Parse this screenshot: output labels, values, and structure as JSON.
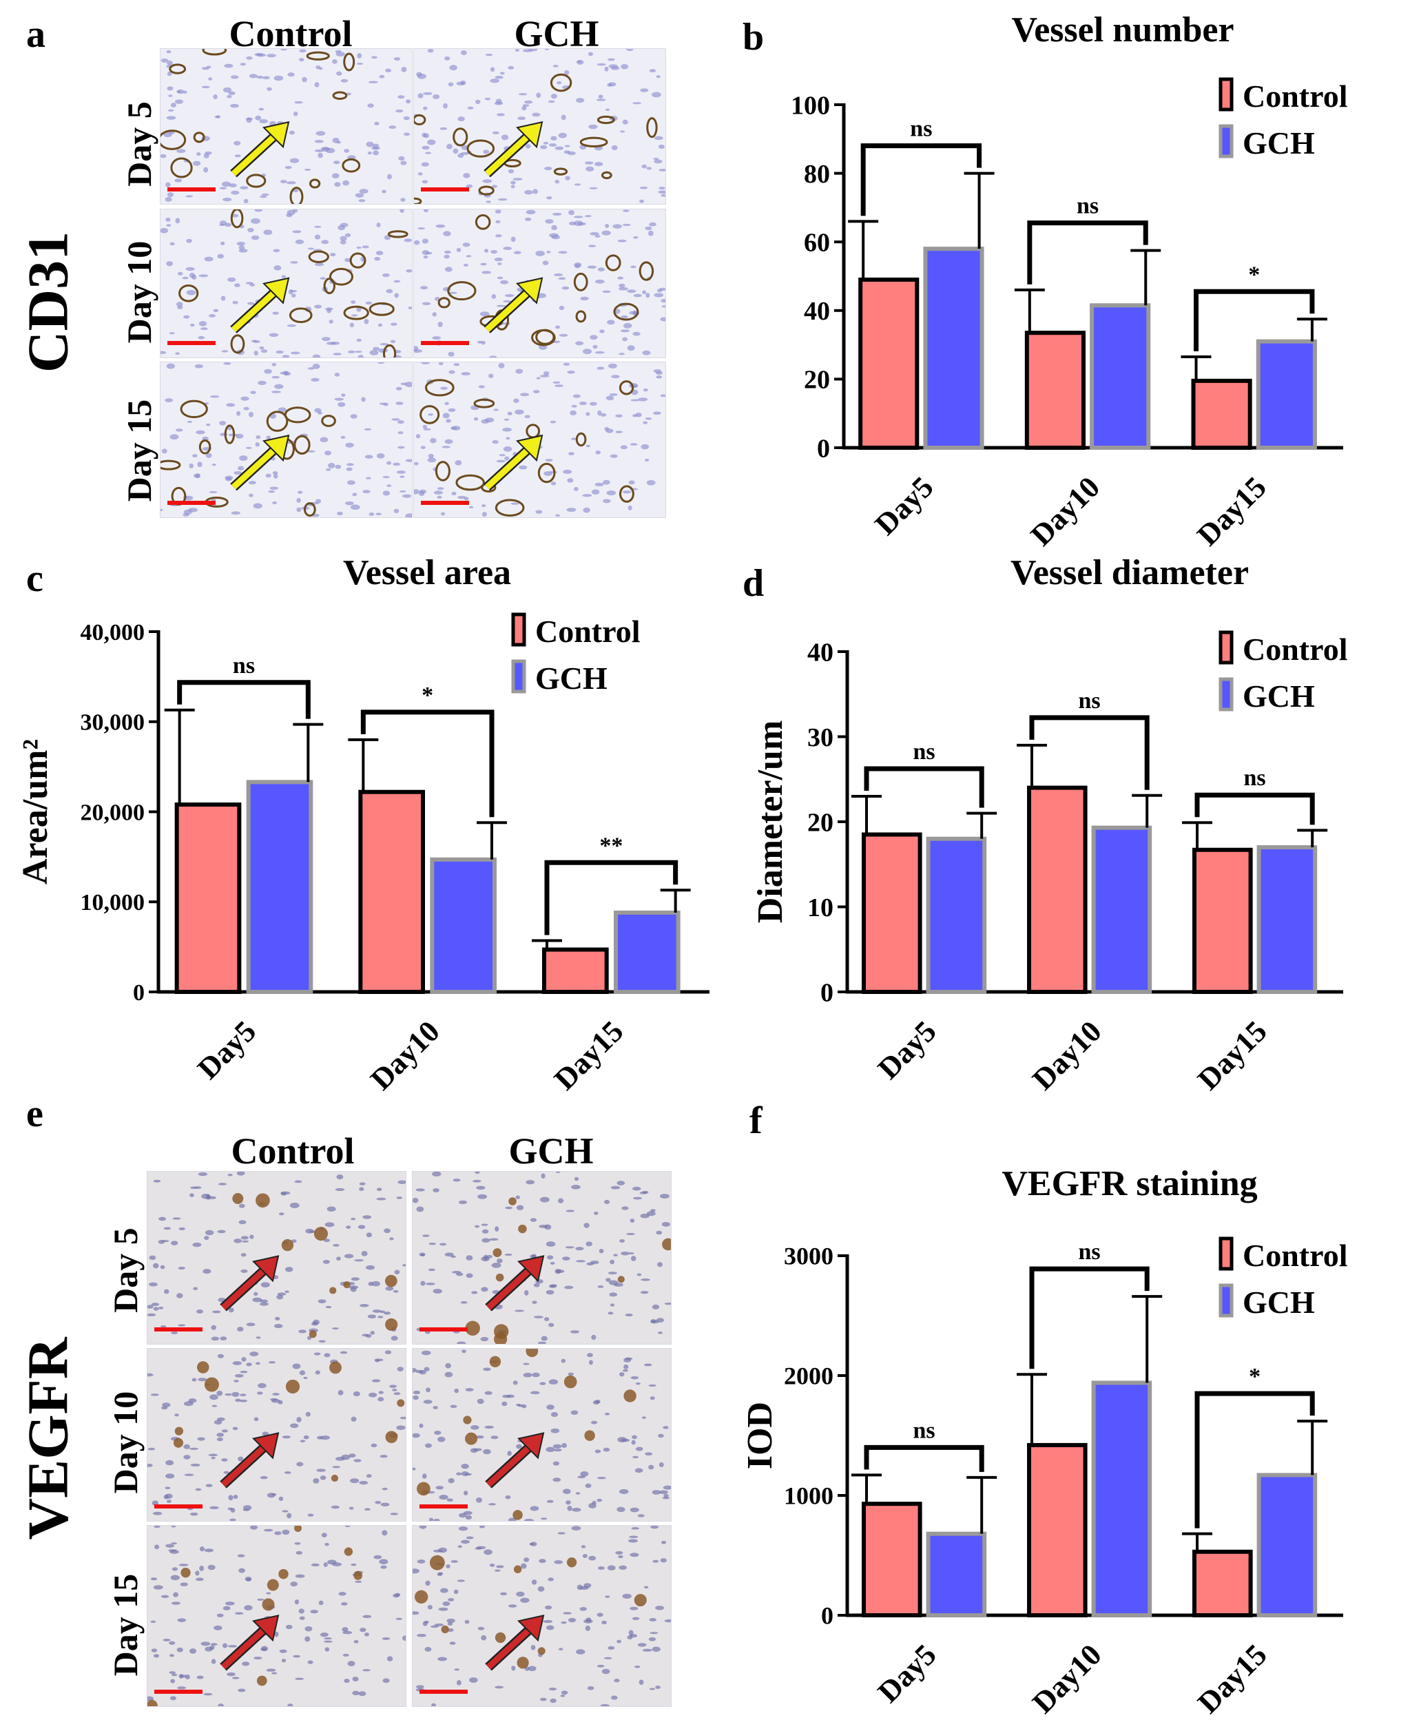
{
  "panels": {
    "a": {
      "letter": "a",
      "stain": "CD31",
      "columns": [
        "Control",
        "GCH"
      ],
      "rows": [
        "Day 5",
        "Day 10",
        "Day 15"
      ]
    },
    "e": {
      "letter": "e",
      "stain": "VEGFR",
      "columns": [
        "Control",
        "GCH"
      ],
      "rows": [
        "Day 5",
        "Day 10",
        "Day 15"
      ]
    }
  },
  "colors": {
    "control": "#FF7F7F",
    "gch": "#5757FF",
    "gch_outline": "#999999",
    "scale_bar": "#ee1111",
    "cd31_arrow": "#f2ee1a",
    "vegfr_arrow": "#cc2a2a"
  },
  "chart_data": [
    {
      "id": "b",
      "letter": "b",
      "type": "bar",
      "title": "Vessel number",
      "xlabel": "",
      "ylabel": "",
      "categories": [
        "Day5",
        "Day10",
        "Day15"
      ],
      "series": [
        {
          "name": "Control",
          "values": [
            49,
            33.5,
            19.5
          ],
          "errors": [
            17,
            12.5,
            7
          ]
        },
        {
          "name": "GCH",
          "values": [
            58,
            41.5,
            31
          ],
          "errors": [
            22,
            16,
            6.5
          ]
        }
      ],
      "yticks": [
        "0",
        "20",
        "40",
        "60",
        "80",
        "100"
      ],
      "ylim": [
        0,
        100
      ],
      "significance": [
        "ns",
        "ns",
        "*"
      ]
    },
    {
      "id": "c",
      "letter": "c",
      "type": "bar",
      "title": "Vessel area",
      "xlabel": "",
      "ylabel": "Area/um²",
      "categories": [
        "Day5",
        "Day10",
        "Day15"
      ],
      "series": [
        {
          "name": "Control",
          "values": [
            20800,
            22200,
            4700
          ],
          "errors": [
            10500,
            5800,
            1000
          ]
        },
        {
          "name": "GCH",
          "values": [
            23300,
            14700,
            8800
          ],
          "errors": [
            6400,
            4100,
            2500
          ]
        }
      ],
      "yticks": [
        "0",
        "10,000",
        "20,000",
        "30,000",
        "40,000"
      ],
      "ylim": [
        0,
        40000
      ],
      "significance": [
        "ns",
        "*",
        "**"
      ]
    },
    {
      "id": "d",
      "letter": "d",
      "type": "bar",
      "title": "Vessel diameter",
      "xlabel": "",
      "ylabel": "Diameter/um",
      "categories": [
        "Day5",
        "Day10",
        "Day15"
      ],
      "series": [
        {
          "name": "Control",
          "values": [
            18.5,
            24,
            16.7
          ],
          "errors": [
            4.5,
            5,
            3.2
          ]
        },
        {
          "name": "GCH",
          "values": [
            18,
            19.3,
            17
          ],
          "errors": [
            3,
            3.8,
            2
          ]
        }
      ],
      "yticks": [
        "0",
        "10",
        "20",
        "30",
        "40"
      ],
      "ylim": [
        0,
        40
      ],
      "significance": [
        "ns",
        "ns",
        "ns"
      ]
    },
    {
      "id": "f",
      "letter": "f",
      "type": "bar",
      "title": "VEGFR staining",
      "xlabel": "",
      "ylabel": "IOD",
      "categories": [
        "Day5",
        "Day10",
        "Day15"
      ],
      "series": [
        {
          "name": "Control",
          "values": [
            930,
            1420,
            530
          ],
          "errors": [
            240,
            590,
            150
          ]
        },
        {
          "name": "GCH",
          "values": [
            680,
            1940,
            1170
          ],
          "errors": [
            470,
            720,
            450
          ]
        }
      ],
      "yticks": [
        "0",
        "1000",
        "2000",
        "3000"
      ],
      "ylim": [
        0,
        3000
      ],
      "significance": [
        "ns",
        "ns",
        "*"
      ]
    }
  ]
}
